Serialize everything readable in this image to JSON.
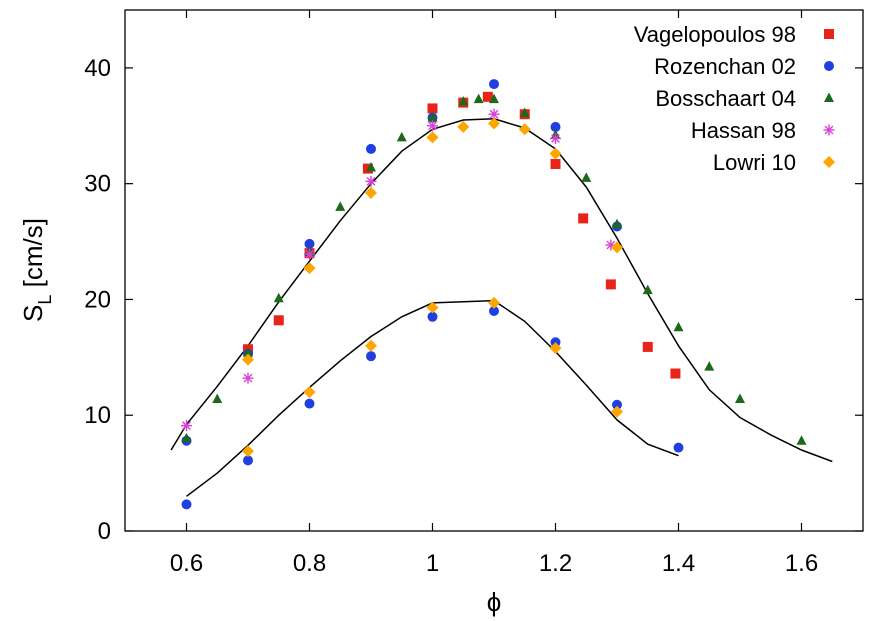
{
  "chart_data": {
    "type": "scatter",
    "title": "",
    "xlabel": "ϕ",
    "ylabel": {
      "main": "S",
      "subscript": "L",
      "unit": "[cm/s]"
    },
    "xlim": [
      0.5,
      1.7
    ],
    "ylim": [
      0,
      45
    ],
    "xticks": [
      0.6,
      0.8,
      1,
      1.2,
      1.4,
      1.6
    ],
    "yticks": [
      0,
      10,
      20,
      30,
      40
    ],
    "xtick_labels": [
      "0.6",
      "0.8",
      "1",
      "1.2",
      "1.4",
      "1.6"
    ],
    "ytick_labels": [
      "0",
      "10",
      "20",
      "30",
      "40"
    ],
    "grid": false,
    "legend_position": "top-right",
    "series": [
      {
        "name": "Vagelopoulos 98",
        "marker": "square",
        "color": "#e8231a",
        "x": [
          0.7,
          0.75,
          0.8,
          0.895,
          1.0,
          1.05,
          1.09,
          1.15,
          1.2,
          1.245,
          1.29,
          1.35,
          1.395
        ],
        "y": [
          15.7,
          18.2,
          24.0,
          31.3,
          36.5,
          37.0,
          37.5,
          36.0,
          31.7,
          27.0,
          21.3,
          15.9,
          13.6
        ]
      },
      {
        "name": "Rozenchan 02",
        "marker": "circle",
        "color": "#1f3fe0",
        "x": [
          0.6,
          0.7,
          0.8,
          0.9,
          1.0,
          1.1,
          1.2,
          1.3,
          0.6,
          0.7,
          0.8,
          0.9,
          1.0,
          1.1,
          1.2,
          1.3,
          1.4
        ],
        "y": [
          7.8,
          15.3,
          24.8,
          33.0,
          35.7,
          38.6,
          34.9,
          26.3,
          2.3,
          6.1,
          11.0,
          15.1,
          18.5,
          19.0,
          16.3,
          10.9,
          7.2
        ]
      },
      {
        "name": "Bosschaart 04",
        "marker": "triangle",
        "color": "#1a6a1a",
        "x": [
          0.6,
          0.65,
          0.7,
          0.75,
          0.8,
          0.85,
          0.9,
          0.95,
          1.0,
          1.05,
          1.075,
          1.1,
          1.15,
          1.2,
          1.25,
          1.3,
          1.35,
          1.4,
          1.45,
          1.5,
          1.6
        ],
        "y": [
          8.0,
          11.4,
          15.4,
          20.1,
          24.1,
          28.0,
          31.4,
          34.0,
          35.7,
          37.1,
          37.3,
          37.3,
          36.1,
          34.2,
          30.5,
          26.5,
          20.8,
          17.6,
          14.2,
          11.4,
          7.8
        ]
      },
      {
        "name": "Hassan 98",
        "marker": "asterisk",
        "color": "#d940d9",
        "x": [
          0.6,
          0.7,
          0.8,
          0.9,
          1.0,
          1.1,
          1.2,
          1.29
        ],
        "y": [
          9.1,
          13.2,
          23.9,
          30.2,
          35.0,
          36.0,
          33.9,
          24.7
        ]
      },
      {
        "name": "Lowri 10",
        "marker": "diamond",
        "color": "#ffa500",
        "x": [
          0.7,
          0.8,
          0.9,
          1.0,
          1.05,
          1.1,
          1.15,
          1.2,
          1.3,
          0.7,
          0.8,
          0.9,
          1.0,
          1.1,
          1.2,
          1.3
        ],
        "y": [
          14.8,
          22.7,
          29.2,
          34.0,
          34.9,
          35.2,
          34.7,
          32.6,
          24.5,
          6.9,
          12.0,
          16.0,
          19.3,
          19.7,
          15.8,
          10.3
        ]
      }
    ],
    "curves": [
      {
        "name": "",
        "x": [
          0.575,
          0.6,
          0.65,
          0.7,
          0.75,
          0.8,
          0.85,
          0.9,
          0.95,
          1.0,
          1.05,
          1.1,
          1.15,
          1.2,
          1.25,
          1.3,
          1.35,
          1.4,
          1.45,
          1.5,
          1.55,
          1.6,
          1.65
        ],
        "y": [
          7.0,
          9.2,
          12.5,
          16.0,
          19.8,
          23.3,
          26.8,
          30.0,
          32.8,
          34.7,
          35.5,
          35.6,
          34.8,
          33.0,
          29.7,
          25.3,
          20.5,
          16.0,
          12.2,
          9.8,
          8.3,
          7.0,
          6.0
        ]
      },
      {
        "name": "",
        "x": [
          0.6,
          0.65,
          0.7,
          0.75,
          0.8,
          0.85,
          0.9,
          0.95,
          1.0,
          1.05,
          1.1,
          1.15,
          1.2,
          1.25,
          1.3,
          1.35,
          1.4
        ],
        "y": [
          3.0,
          5.0,
          7.4,
          10.0,
          12.4,
          14.7,
          16.8,
          18.5,
          19.7,
          19.8,
          19.9,
          18.1,
          15.5,
          12.6,
          9.6,
          7.5,
          6.5
        ]
      }
    ]
  }
}
